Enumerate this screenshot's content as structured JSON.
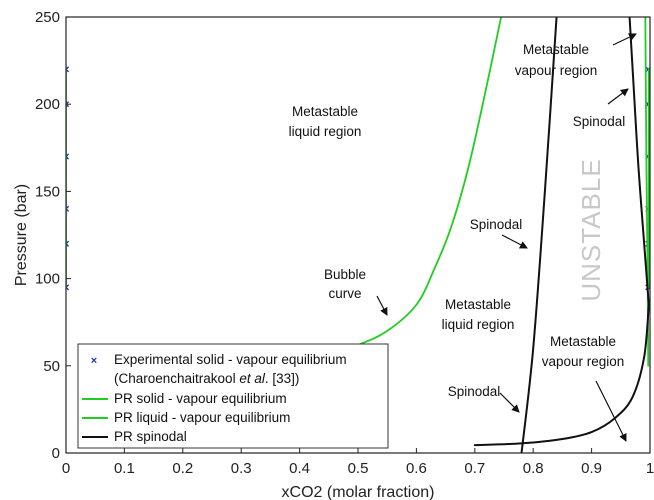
{
  "chart_data": {
    "type": "line",
    "xlabel": "xCO2 (molar fraction)",
    "ylabel": "Pressure (bar)",
    "xlim": [
      0,
      1
    ],
    "ylim": [
      0,
      250
    ],
    "x_ticks": [
      "0",
      "0.1",
      "0.2",
      "0.3",
      "0.4",
      "0.5",
      "0.6",
      "0.7",
      "0.8",
      "0.9",
      "1"
    ],
    "y_ticks": [
      "0",
      "50",
      "100",
      "150",
      "200",
      "250"
    ],
    "grid": false,
    "legend_position": "bottom-left",
    "legend": {
      "entry1_line1": "Experimental solid - vapour equilibrium",
      "entry1_line2_pre": "(Charoenchaitrakool ",
      "entry1_line2_em": "et al",
      "entry1_line2_post": ". [33])",
      "entry2": "PR solid - vapour equilibrium",
      "entry3": "PR liquid - vapour equilibrium",
      "entry4": "PR spinodal"
    },
    "annotations": {
      "metastable_liquid_top_1": "Metastable",
      "metastable_liquid_top_2": "liquid region",
      "bubble_1": "Bubble",
      "bubble_2": "curve",
      "spinodal_mid": "Spinodal",
      "metastable_liquid_mid_1": "Metastable",
      "metastable_liquid_mid_2": "liquid region",
      "metastable_vapour_top_1": "Metastable",
      "metastable_vapour_top_2": "vapour region",
      "spinodal_right": "Spinodal",
      "unstable": "UNSTABLE",
      "spinodal_low": "Spinodal",
      "metastable_vapour_low_1": "Metastable",
      "metastable_vapour_low_2": "vapour region"
    },
    "series": [
      {
        "role": "experimental",
        "marker": "x",
        "color": "#2233bb",
        "points": [
          {
            "x": 0.0,
            "y": 95
          },
          {
            "x": 0.0,
            "y": 120
          },
          {
            "x": 0.0,
            "y": 140
          },
          {
            "x": 0.0,
            "y": 170
          },
          {
            "x": 0.0,
            "y": 200
          },
          {
            "x": 0.0,
            "y": 220
          },
          {
            "x": 0.997,
            "y": 95
          },
          {
            "x": 0.997,
            "y": 120
          },
          {
            "x": 0.997,
            "y": 140
          },
          {
            "x": 0.997,
            "y": 170
          },
          {
            "x": 0.997,
            "y": 200
          },
          {
            "x": 0.997,
            "y": 220
          }
        ]
      },
      {
        "role": "pr-solid-vapour",
        "color": "#22cc22",
        "segments": [
          [
            {
              "x": 0.0,
              "y": 95
            },
            {
              "x": 0.0,
              "y": 220
            }
          ],
          [
            {
              "x": 0.998,
              "y": 95
            },
            {
              "x": 0.998,
              "y": 220
            }
          ]
        ]
      },
      {
        "role": "pr-liquid-vapour",
        "color": "#22cc22",
        "segments": [
          [
            {
              "x": 0.35,
              "y": 50
            },
            {
              "x": 0.45,
              "y": 57
            },
            {
              "x": 0.5,
              "y": 62
            },
            {
              "x": 0.55,
              "y": 70
            },
            {
              "x": 0.6,
              "y": 85
            },
            {
              "x": 0.63,
              "y": 105
            },
            {
              "x": 0.66,
              "y": 130
            },
            {
              "x": 0.69,
              "y": 165
            },
            {
              "x": 0.72,
              "y": 210
            },
            {
              "x": 0.745,
              "y": 250
            }
          ],
          [
            {
              "x": 0.997,
              "y": 50
            },
            {
              "x": 0.996,
              "y": 100
            },
            {
              "x": 0.994,
              "y": 160
            },
            {
              "x": 0.992,
              "y": 250
            }
          ]
        ]
      },
      {
        "role": "pr-spinodal",
        "color": "#111111",
        "segments": [
          [
            {
              "x": 0.7,
              "y": 4.5
            },
            {
              "x": 0.78,
              "y": 5.5
            },
            {
              "x": 0.85,
              "y": 8
            },
            {
              "x": 0.9,
              "y": 12
            },
            {
              "x": 0.94,
              "y": 20
            },
            {
              "x": 0.97,
              "y": 32
            },
            {
              "x": 0.99,
              "y": 55
            },
            {
              "x": 0.998,
              "y": 85
            }
          ],
          [
            {
              "x": 0.78,
              "y": 0
            },
            {
              "x": 0.8,
              "y": 60
            },
            {
              "x": 0.82,
              "y": 150
            },
            {
              "x": 0.84,
              "y": 250
            }
          ],
          [
            {
              "x": 0.998,
              "y": 85
            },
            {
              "x": 0.99,
              "y": 120
            },
            {
              "x": 0.98,
              "y": 165
            },
            {
              "x": 0.972,
              "y": 210
            },
            {
              "x": 0.965,
              "y": 250
            }
          ]
        ]
      }
    ]
  }
}
